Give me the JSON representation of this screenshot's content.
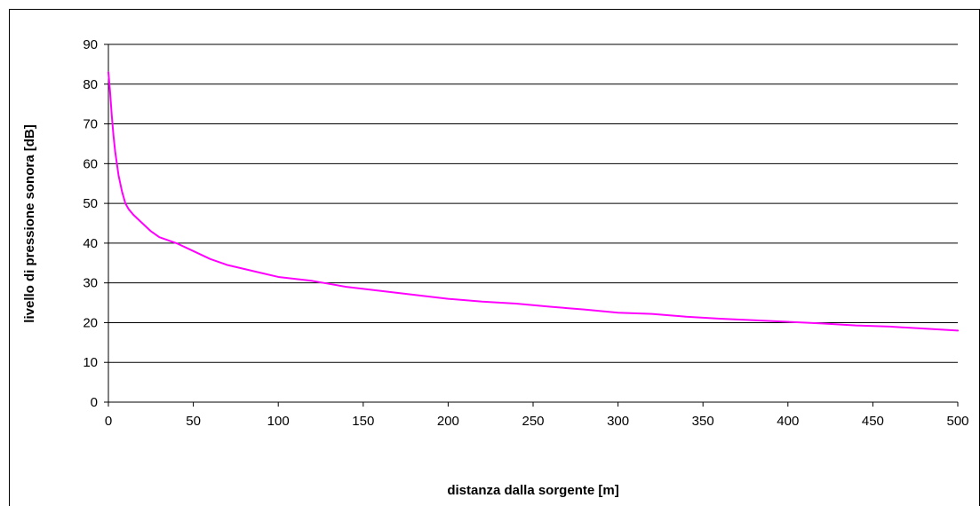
{
  "chart_data": {
    "type": "line",
    "title": "",
    "xlabel": "distanza dalla sorgente [m]",
    "ylabel": "livello di pressione sonora [dB]",
    "xlim": [
      0,
      500
    ],
    "ylim": [
      0,
      90
    ],
    "xticks": [
      0,
      50,
      100,
      150,
      200,
      250,
      300,
      350,
      400,
      450,
      500
    ],
    "yticks": [
      0,
      10,
      20,
      30,
      40,
      50,
      60,
      70,
      80,
      90
    ],
    "grid": {
      "horizontal": true,
      "vertical": false
    },
    "legend": "none",
    "series": [
      {
        "color": "#ff00ff",
        "x": [
          0,
          1,
          2,
          3,
          4,
          5,
          6,
          8,
          10,
          12,
          15,
          20,
          25,
          30,
          40,
          50,
          60,
          70,
          80,
          90,
          100,
          120,
          140,
          160,
          180,
          200,
          220,
          240,
          260,
          280,
          300,
          320,
          340,
          360,
          380,
          400,
          420,
          440,
          460,
          480,
          500
        ],
        "y": [
          83,
          78,
          72,
          67,
          63,
          60,
          57,
          53,
          50,
          48.5,
          47,
          45,
          43,
          41.5,
          40,
          38,
          36,
          34.5,
          33.5,
          32.5,
          31.5,
          30.5,
          29,
          28,
          27,
          26,
          25.3,
          24.8,
          24,
          23.3,
          22.5,
          22.2,
          21.5,
          21,
          20.6,
          20.2,
          19.8,
          19.3,
          19,
          18.5,
          18
        ]
      }
    ]
  }
}
